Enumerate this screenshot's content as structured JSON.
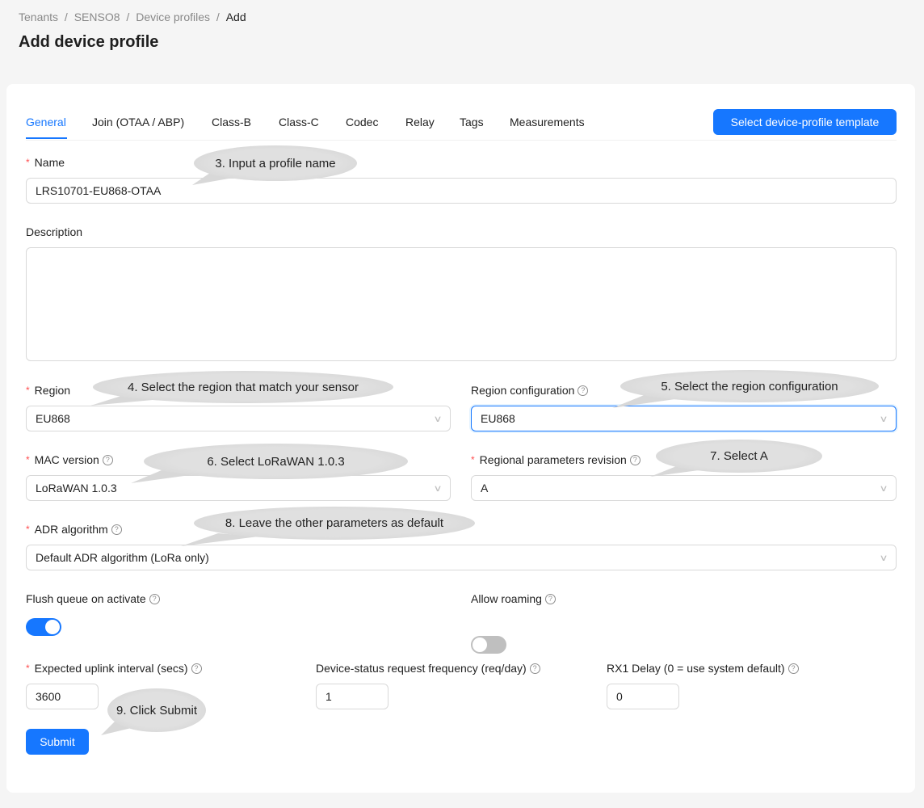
{
  "breadcrumb": [
    "Tenants",
    "SENSO8",
    "Device profiles",
    "Add"
  ],
  "page_title": "Add device profile",
  "tabs": [
    "General",
    "Join (OTAA / ABP)",
    "Class-B",
    "Class-C",
    "Codec",
    "Relay",
    "Tags",
    "Measurements"
  ],
  "template_button": "Select device-profile template",
  "form": {
    "name_label": "Name",
    "name_value": "LRS10701-EU868-OTAA",
    "description_label": "Description",
    "description_value": "",
    "region_label": "Region",
    "region_value": "EU868",
    "region_config_label": "Region configuration",
    "region_config_value": "EU868",
    "mac_label": "MAC version",
    "mac_value": "LoRaWAN 1.0.3",
    "rp_label": "Regional parameters revision",
    "rp_value": "A",
    "adr_label": "ADR algorithm",
    "adr_value": "Default ADR algorithm (LoRa only)",
    "flush_label": "Flush queue on activate",
    "flush_on": true,
    "roaming_label": "Allow roaming",
    "roaming_on": false,
    "uplink_label": "Expected uplink interval (secs)",
    "uplink_value": "3600",
    "status_label": "Device-status request frequency (req/day)",
    "status_value": "1",
    "rx1_label": "RX1 Delay (0 = use system default)",
    "rx1_value": "0",
    "submit": "Submit"
  },
  "callouts": [
    "3. Input a profile name",
    "4. Select the region that match your sensor",
    "5. Select the region configuration",
    "6. Select LoRaWAN 1.0.3",
    "7. Select A",
    "8. Leave the other parameters as default",
    "9. Click Submit"
  ],
  "colors": {
    "primary": "#1677ff",
    "required": "#ff4d4f"
  }
}
